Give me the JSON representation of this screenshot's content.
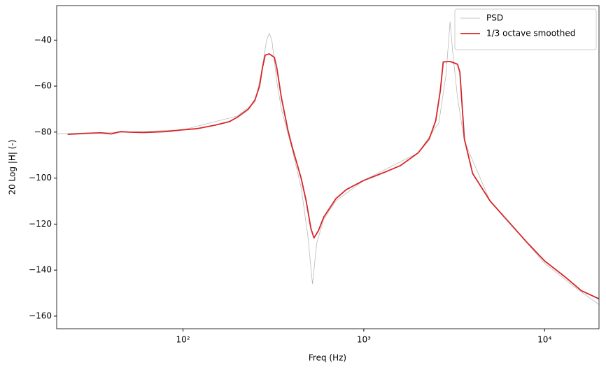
{
  "chart_data": {
    "type": "line",
    "x_label": "Freq (Hz)",
    "y_label": "20 Log |H| (-)",
    "xscale": "log",
    "xlim": [
      20,
      20000
    ],
    "ylim": [
      -165.5,
      -25
    ],
    "xticks": [
      {
        "value": 100,
        "label": "10²"
      },
      {
        "value": 1000,
        "label": "10³"
      },
      {
        "value": 10000,
        "label": "10⁴"
      }
    ],
    "yticks": [
      {
        "value": -40,
        "label": "−40"
      },
      {
        "value": -60,
        "label": "−60"
      },
      {
        "value": -80,
        "label": "−80"
      },
      {
        "value": -100,
        "label": "−100"
      },
      {
        "value": -120,
        "label": "−120"
      },
      {
        "value": -140,
        "label": "−140"
      },
      {
        "value": -160,
        "label": "−160"
      }
    ],
    "legend": "upper right",
    "series": [
      {
        "name": "PSD",
        "color": "#b0b0b0",
        "width": 0.7,
        "x": [
          20,
          30,
          50,
          100,
          200,
          250,
          270,
          290,
          300,
          310,
          330,
          350,
          400,
          450,
          490,
          520,
          550,
          600,
          700,
          1000,
          2000,
          2600,
          2850,
          3000,
          3100,
          3300,
          3600,
          5000,
          10000,
          15000,
          20000
        ],
        "values": [
          -80.8,
          -80.3,
          -80,
          -79,
          -73,
          -67,
          -55,
          -40,
          -37,
          -40,
          -58,
          -70,
          -87,
          -104,
          -125,
          -146,
          -128,
          -118,
          -110,
          -101,
          -89,
          -76,
          -55,
          -32,
          -45,
          -65,
          -84,
          -110,
          -137,
          -148,
          -155
        ]
      },
      {
        "name": "1/3 octave smoothed",
        "color": "#d62728",
        "width": 1.8,
        "x": [
          23,
          30,
          35,
          40,
          45,
          50,
          60,
          80,
          100,
          120,
          150,
          180,
          200,
          230,
          250,
          265,
          275,
          285,
          300,
          320,
          330,
          350,
          380,
          400,
          450,
          480,
          510,
          530,
          560,
          600,
          700,
          800,
          1000,
          1300,
          1600,
          2000,
          2300,
          2500,
          2650,
          2750,
          3000,
          3300,
          3400,
          3600,
          4000,
          5000,
          6000,
          8000,
          10000,
          13000,
          16000,
          20000
        ],
        "values": [
          -81,
          -80.5,
          -80.3,
          -80.8,
          -79.8,
          -80,
          -80.2,
          -79.8,
          -79,
          -78.5,
          -77,
          -75.5,
          -73.5,
          -70,
          -66,
          -60,
          -52,
          -46.5,
          -46,
          -47.5,
          -52,
          -65,
          -79,
          -86,
          -100,
          -110,
          -122,
          -126,
          -123,
          -117,
          -109,
          -105,
          -101,
          -97.5,
          -94.5,
          -89,
          -83,
          -75,
          -62,
          -49.5,
          -49.3,
          -50.5,
          -54,
          -83,
          -98,
          -110,
          -117,
          -128,
          -136,
          -143,
          -149,
          -152.5
        ]
      }
    ]
  }
}
